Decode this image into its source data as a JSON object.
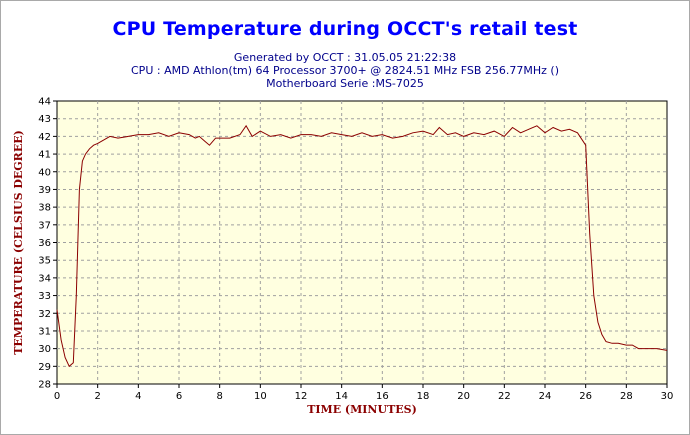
{
  "header": {
    "title": "CPU Temperature during OCCT's retail test",
    "lines": [
      "Generated by OCCT : 31.05.05 21:22:38",
      "CPU : AMD Athlon(tm) 64 Processor 3700+ @ 2824.51 MHz FSB 256.77MHz ()",
      "Motherboard Serie :MS-7025"
    ]
  },
  "colors": {
    "title": "#0000ff",
    "subtitle": "#00008b",
    "line": "#8b0000",
    "axis_label": "#8b0000",
    "plot_bg": "#ffffe0",
    "grid": "#a0a0a0"
  },
  "chart_data": {
    "type": "line",
    "title": "CPU Temperature during OCCT's retail test",
    "xlabel": "Time (minutes)",
    "ylabel": "Temperature (Celsius degree)",
    "xlim": [
      0,
      30
    ],
    "ylim": [
      28,
      44
    ],
    "xticks": [
      0,
      2,
      4,
      6,
      8,
      10,
      12,
      14,
      16,
      18,
      20,
      22,
      24,
      26,
      28,
      30
    ],
    "yticks": [
      28,
      29,
      30,
      31,
      32,
      33,
      34,
      35,
      36,
      37,
      38,
      39,
      40,
      41,
      42,
      43,
      44
    ],
    "grid": true,
    "series": [
      {
        "values_x": [
          0,
          0.2,
          0.4,
          0.6,
          0.8,
          0.95,
          1.1,
          1.25,
          1.4,
          1.6,
          1.8,
          2.0,
          2.3,
          2.6,
          3.0,
          3.5,
          4.0,
          4.5,
          5.0,
          5.5,
          6.0,
          6.5,
          6.8,
          7.0,
          7.3,
          7.5,
          7.8,
          8.0,
          8.5,
          9.0,
          9.3,
          9.6,
          10.0,
          10.5,
          11.0,
          11.5,
          12.0,
          12.5,
          13.0,
          13.5,
          14.0,
          14.5,
          15.0,
          15.5,
          16.0,
          16.5,
          17.0,
          17.5,
          18.0,
          18.5,
          18.8,
          19.2,
          19.6,
          20.0,
          20.5,
          21.0,
          21.5,
          22.0,
          22.4,
          22.8,
          23.2,
          23.6,
          24.0,
          24.4,
          24.8,
          25.2,
          25.6,
          26.0,
          26.2,
          26.4,
          26.6,
          26.8,
          27.0,
          27.3,
          27.6,
          28.0,
          28.3,
          28.6,
          29.0,
          29.5,
          30.0
        ],
        "values_y": [
          32.2,
          30.5,
          29.5,
          29.0,
          29.2,
          33.0,
          39.0,
          40.6,
          41.0,
          41.3,
          41.5,
          41.6,
          41.8,
          42.0,
          41.9,
          42.0,
          42.1,
          42.1,
          42.2,
          42.0,
          42.2,
          42.1,
          41.9,
          42.0,
          41.7,
          41.5,
          41.9,
          41.9,
          41.9,
          42.1,
          42.6,
          42.0,
          42.3,
          42.0,
          42.1,
          41.9,
          42.1,
          42.1,
          42.0,
          42.2,
          42.1,
          42.0,
          42.2,
          42.0,
          42.1,
          41.9,
          42.0,
          42.2,
          42.3,
          42.1,
          42.5,
          42.1,
          42.2,
          42.0,
          42.2,
          42.1,
          42.3,
          42.0,
          42.5,
          42.2,
          42.4,
          42.6,
          42.2,
          42.5,
          42.3,
          42.4,
          42.2,
          41.5,
          36.5,
          33.0,
          31.5,
          30.8,
          30.4,
          30.3,
          30.3,
          30.2,
          30.2,
          30.0,
          30.0,
          30.0,
          29.9
        ]
      }
    ]
  }
}
